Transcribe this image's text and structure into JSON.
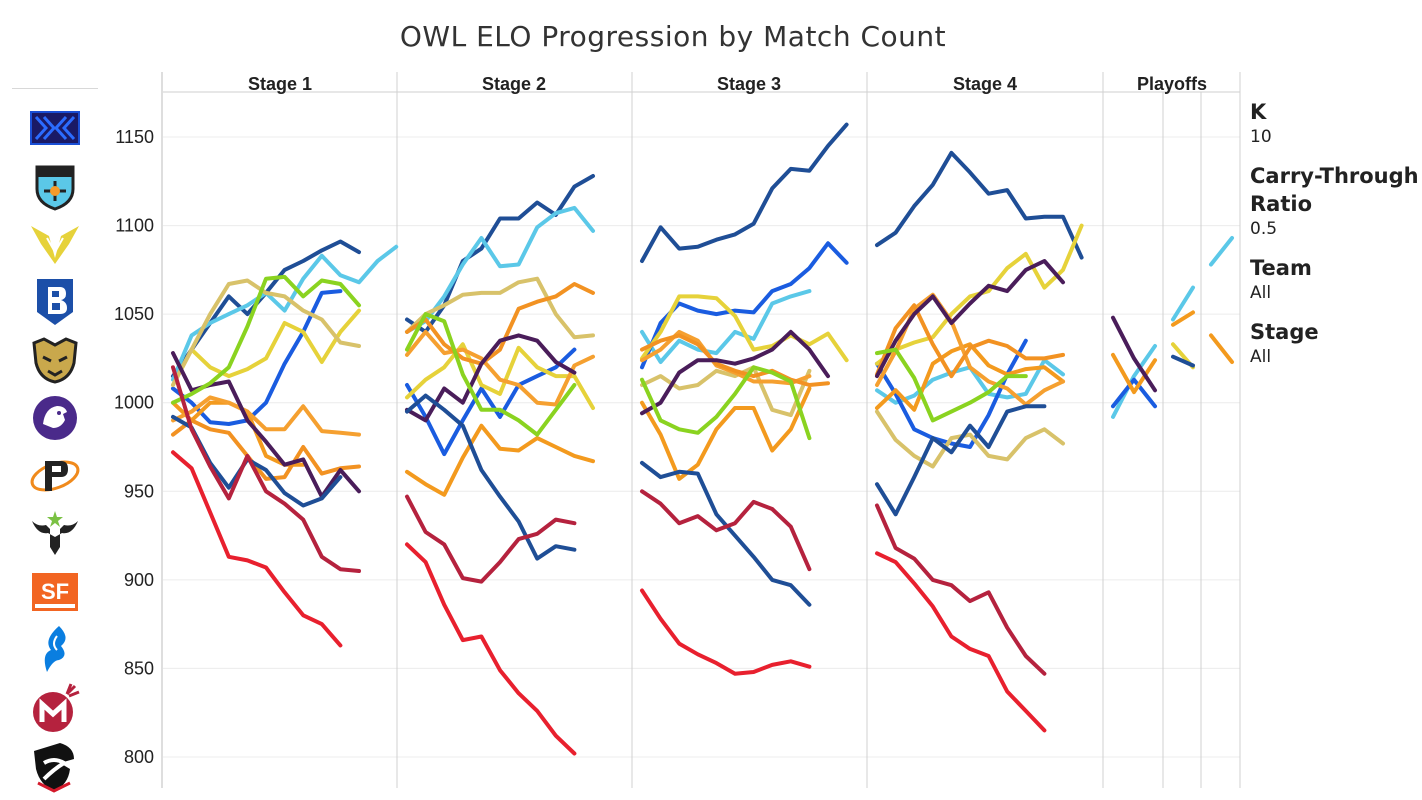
{
  "title": "OWL ELO Progression by Match Count",
  "panel": {
    "k_label": "K",
    "k_value": "10",
    "ctr_label": "Carry-Through Ratio",
    "ctr_value": "0.5",
    "team_label": "Team",
    "team_value": "All",
    "stage_label": "Stage",
    "stage_value": "All"
  },
  "logos": [
    {
      "name": "New York Excelsior",
      "icon": "nyxl-logo",
      "color": "#1a4fd6"
    },
    {
      "name": "London Spitfire",
      "icon": "london-logo",
      "color": "#5bc8e8"
    },
    {
      "name": "Los Angeles Valiant",
      "icon": "valiant-logo",
      "color": "#e6d23a"
    },
    {
      "name": "Boston Uprising",
      "icon": "boston-logo",
      "color": "#1c4fa8"
    },
    {
      "name": "Seoul Dynasty",
      "icon": "seoul-logo",
      "color": "#c9a84c"
    },
    {
      "name": "Los Angeles Gladiators",
      "icon": "gladiators-logo",
      "color": "#4a2a8a"
    },
    {
      "name": "Philadelphia Fusion",
      "icon": "fusion-logo",
      "color": "#f08a1c"
    },
    {
      "name": "Houston Outlaws",
      "icon": "outlaws-logo",
      "color": "#7ac143"
    },
    {
      "name": "San Francisco Shock",
      "icon": "shock-logo",
      "color": "#f26522"
    },
    {
      "name": "Dallas Fuel",
      "icon": "fuel-logo",
      "color": "#0a7ee0"
    },
    {
      "name": "Florida Mayhem",
      "icon": "mayhem-logo",
      "color": "#b5223e"
    },
    {
      "name": "Shanghai Dragons",
      "icon": "dragons-logo",
      "color": "#d4192b"
    }
  ],
  "chart_data": {
    "type": "line",
    "title": "OWL ELO Progression by Match Count",
    "xlabel": "",
    "ylabel": "",
    "ylim": [
      785,
      1165
    ],
    "yticks": [
      800,
      850,
      900,
      950,
      1000,
      1050,
      1100,
      1150
    ],
    "grid": true,
    "panels": [
      "Stage 1",
      "Stage 2",
      "Stage 3",
      "Stage 4",
      "Playoffs"
    ],
    "series": [
      {
        "color": "#1f4e96",
        "stages": [
          [
            1015,
            1030,
            1045,
            1060,
            1050,
            1062,
            1075,
            1080,
            1086,
            1091,
            1085
          ],
          [
            1047,
            1040,
            1055,
            1080,
            1087,
            1104,
            1104,
            1113,
            1106,
            1122,
            1128
          ],
          [
            1080,
            1099,
            1087,
            1088,
            1092,
            1095,
            1101,
            1121,
            1132,
            1131,
            1145,
            1157
          ],
          [
            1089,
            1096,
            1111,
            1123,
            1141,
            1130,
            1118,
            1120,
            1104,
            1105,
            1105,
            1082
          ],
          [],
          [],
          []
        ]
      },
      {
        "color": "#5bc8e8",
        "stages": [
          [
            1013,
            1038,
            1045,
            1050,
            1055,
            1062,
            1052,
            1070,
            1083,
            1072,
            1068,
            1080,
            1088
          ],
          [
            1040,
            1046,
            1060,
            1078,
            1093,
            1077,
            1078,
            1099,
            1107,
            1110,
            1097
          ],
          [
            1040,
            1023,
            1035,
            1030,
            1028,
            1040,
            1036,
            1056,
            1060,
            1063
          ],
          [
            1007,
            1000,
            1004,
            1013,
            1017,
            1020,
            1005,
            1003,
            1005,
            1024,
            1016
          ],
          [
            992,
            1015,
            1032
          ],
          [
            1047,
            1065
          ],
          [
            1078,
            1093
          ]
        ]
      },
      {
        "color": "#1a5ce0",
        "stages": [
          [
            1008,
            1000,
            989,
            988,
            990,
            1000,
            1022,
            1040,
            1062,
            1063
          ],
          [
            1010,
            992,
            971,
            990,
            1008,
            992,
            1010,
            1015,
            1020,
            1030
          ],
          [
            1020,
            1045,
            1056,
            1052,
            1050,
            1052,
            1051,
            1063,
            1067,
            1076,
            1090,
            1079
          ],
          [
            1022,
            1005,
            985,
            980,
            977,
            975,
            993,
            1016,
            1035
          ],
          [
            998,
            1013,
            998
          ],
          [],
          []
        ]
      },
      {
        "color": "#e6d23a",
        "stages": [
          [
            1010,
            1030,
            1020,
            1015,
            1019,
            1025,
            1045,
            1040,
            1023,
            1040,
            1052
          ],
          [
            1003,
            1013,
            1020,
            1033,
            1010,
            1005,
            1031,
            1020,
            1015,
            1015,
            997
          ],
          [
            1025,
            1040,
            1060,
            1060,
            1059,
            1049,
            1030,
            1032,
            1038,
            1033,
            1039,
            1024
          ],
          [
            1022,
            1030,
            1034,
            1037,
            1050,
            1060,
            1063,
            1076,
            1084,
            1065,
            1075,
            1100
          ],
          [],
          [
            1033,
            1020
          ],
          []
        ]
      },
      {
        "color": "#d8c26a",
        "stages": [
          [
            1010,
            1030,
            1050,
            1067,
            1069,
            1062,
            1060,
            1052,
            1047,
            1034,
            1032
          ],
          [
            1040,
            1050,
            1055,
            1061,
            1062,
            1062,
            1068,
            1070,
            1050,
            1037,
            1038
          ],
          [
            1010,
            1015,
            1008,
            1010,
            1018,
            1015,
            1020,
            996,
            993,
            1018
          ],
          [
            995,
            979,
            970,
            964,
            980,
            982,
            970,
            968,
            980,
            985,
            977
          ],
          [],
          [],
          []
        ]
      },
      {
        "color": "#f39a1e",
        "stages": [
          [
            1000,
            990,
            1000,
            1000,
            995,
            970,
            965,
            965
          ],
          [
            961,
            954,
            948,
            969,
            987,
            974,
            973,
            980,
            975,
            970,
            967
          ],
          [
            1000,
            982,
            957,
            965,
            985,
            997,
            997,
            973,
            985,
            1008
          ],
          [
            997,
            1007,
            996,
            1022,
            1029,
            1033,
            1021,
            1016,
            1019,
            1020,
            1012
          ],
          [
            1027,
            1006,
            1024
          ],
          [
            1044,
            1051
          ],
          [
            1038,
            1023
          ]
        ]
      },
      {
        "color": "#f5a030",
        "stages": [
          [
            990,
            995,
            1003,
            1000,
            995,
            985,
            985,
            998,
            984,
            983,
            982
          ],
          [
            1027,
            1040,
            1028,
            1030,
            1025,
            1013,
            1010,
            1000,
            999,
            1021,
            1026
          ],
          [
            1024,
            1030,
            1040,
            1035,
            1021,
            1017,
            1012,
            1012,
            1011,
            1015
          ],
          [
            1010,
            1029,
            1053,
            1061,
            1046,
            1020,
            1012,
            1008,
            999,
            1007,
            1012
          ],
          [],
          [],
          []
        ]
      },
      {
        "color": "#f29222",
        "stages": [
          [
            982,
            990,
            985,
            983,
            970,
            957,
            958,
            975,
            960,
            963,
            964
          ],
          [
            1040,
            1047,
            1033,
            1025,
            1022,
            1030,
            1053,
            1057,
            1060,
            1067,
            1062
          ],
          [
            1030,
            1035,
            1038,
            1033,
            1022,
            1018,
            1015,
            1018,
            1013,
            1010,
            1011
          ],
          [
            1016,
            1042,
            1055,
            1033,
            1015,
            1031,
            1035,
            1032,
            1025,
            1025,
            1027
          ],
          [],
          [],
          []
        ]
      },
      {
        "color": "#4a1d5a",
        "stages": [
          [
            1028,
            1007,
            1010,
            1012,
            990,
            978,
            965,
            968,
            947,
            962,
            950
          ],
          [
            996,
            990,
            1008,
            1000,
            1022,
            1035,
            1038,
            1035,
            1023,
            1017
          ],
          [
            994,
            1000,
            1017,
            1024,
            1024,
            1022,
            1025,
            1030,
            1040,
            1030,
            1015
          ],
          [
            1015,
            1035,
            1050,
            1060,
            1045,
            1056,
            1066,
            1063,
            1075,
            1080,
            1068
          ],
          [
            1048,
            1025,
            1007
          ],
          [],
          []
        ]
      },
      {
        "color": "#8ad320",
        "stages": [
          [
            1000,
            1005,
            1011,
            1020,
            1043,
            1070,
            1071,
            1060,
            1069,
            1067,
            1055
          ],
          [
            1030,
            1050,
            1046,
            1016,
            996,
            996,
            990,
            982,
            996,
            1010
          ],
          [
            1013,
            990,
            985,
            983,
            992,
            1005,
            1020,
            1017,
            1012,
            980
          ],
          [
            1028,
            1030,
            1014,
            990,
            995,
            1000,
            1006,
            1015,
            1015
          ],
          [],
          [],
          []
        ]
      },
      {
        "color": "#1f4e96",
        "stages": [
          [
            992,
            986,
            966,
            952,
            968,
            962,
            949,
            942,
            946,
            958
          ],
          [
            995,
            1004,
            996,
            987,
            962,
            947,
            933,
            912,
            919,
            917
          ],
          [
            966,
            958,
            961,
            960,
            937,
            925,
            913,
            900,
            897,
            886
          ],
          [
            954,
            937,
            958,
            980,
            972,
            987,
            975,
            995,
            998,
            998
          ],
          [],
          [
            1026,
            1021
          ],
          []
        ]
      },
      {
        "color": "#b5223e",
        "stages": [
          [
            1020,
            985,
            964,
            946,
            970,
            950,
            943,
            934,
            913,
            906,
            905
          ],
          [
            947,
            927,
            920,
            901,
            899,
            910,
            923,
            926,
            934,
            932
          ],
          [
            950,
            943,
            932,
            936,
            928,
            932,
            944,
            940,
            930,
            906
          ],
          [
            942,
            918,
            912,
            900,
            897,
            888,
            893,
            873,
            857,
            847
          ],
          [],
          [],
          []
        ]
      },
      {
        "color": "#e8202e",
        "stages": [
          [
            972,
            963,
            938,
            913,
            911,
            907,
            893,
            880,
            875,
            863
          ],
          [
            920,
            910,
            886,
            866,
            868,
            849,
            836,
            826,
            812,
            802
          ],
          [
            894,
            878,
            864,
            858,
            853,
            847,
            848,
            852,
            854,
            851
          ],
          [
            915,
            910,
            898,
            885,
            868,
            861,
            857,
            837,
            826,
            815
          ],
          [],
          [],
          []
        ]
      }
    ]
  }
}
